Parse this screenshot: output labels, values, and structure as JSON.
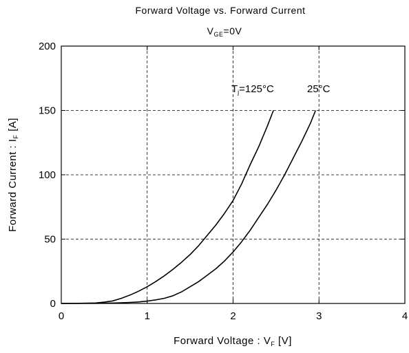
{
  "chart_data": {
    "type": "line",
    "title": "Forward Voltage  vs.  Forward Current",
    "subtitle": {
      "main": "V",
      "sub": "GE",
      "rest": "=0V"
    },
    "xlabel": {
      "main": "Forward Voltage  :  V",
      "sub": "F",
      "rest": "  [V]"
    },
    "ylabel": {
      "main": "Forward Current  :  I",
      "sub": "F",
      "rest": "  [A]"
    },
    "xlim": [
      0,
      4
    ],
    "ylim": [
      0,
      200
    ],
    "xticks": [
      "0",
      "1",
      "2",
      "3",
      "4"
    ],
    "yticks": [
      "0",
      "50",
      "100",
      "150",
      "200"
    ],
    "grid": true,
    "series": [
      {
        "name": "Tj=125°C",
        "label": {
          "main": "T",
          "sub": "j",
          "rest": "=125°C"
        },
        "x": [
          0.0,
          0.2,
          0.4,
          0.5,
          0.6,
          0.7,
          0.8,
          0.9,
          1.0,
          1.1,
          1.2,
          1.3,
          1.4,
          1.5,
          1.6,
          1.7,
          1.8,
          1.9,
          2.0,
          2.1,
          2.2,
          2.3,
          2.4,
          2.47
        ],
        "y": [
          0.0,
          0.1,
          0.4,
          1.0,
          2.0,
          4.0,
          6.5,
          9.5,
          13.0,
          17.0,
          21.5,
          26.5,
          32.0,
          38.0,
          45.0,
          53.0,
          61.0,
          70.0,
          80.0,
          93.0,
          108.0,
          122.0,
          138.0,
          150.0
        ]
      },
      {
        "name": "25°C",
        "label": {
          "main": "25°C",
          "sub": "",
          "rest": ""
        },
        "x": [
          0.0,
          0.4,
          0.6,
          0.8,
          0.9,
          1.0,
          1.1,
          1.2,
          1.3,
          1.4,
          1.5,
          1.6,
          1.7,
          1.8,
          1.9,
          2.0,
          2.1,
          2.2,
          2.3,
          2.4,
          2.5,
          2.6,
          2.7,
          2.8,
          2.9,
          2.96
        ],
        "y": [
          0.0,
          0.1,
          0.3,
          0.8,
          1.2,
          1.8,
          2.8,
          4.0,
          6.0,
          9.0,
          13.0,
          17.0,
          22.0,
          27.0,
          33.0,
          40.0,
          48.0,
          57.0,
          67.0,
          77.0,
          88.0,
          100.0,
          113.0,
          126.0,
          140.0,
          150.0
        ]
      }
    ]
  }
}
